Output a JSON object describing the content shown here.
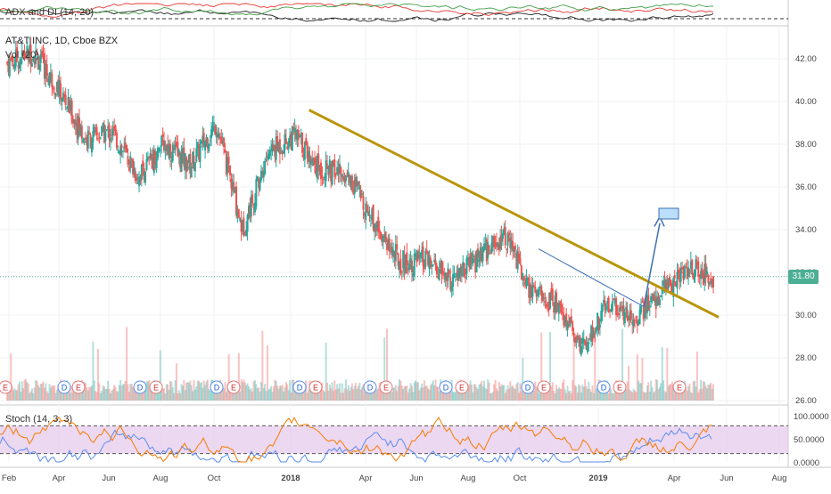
{
  "indicators": {
    "adx_label": "ADX and DI (14, 20)",
    "stoch_label": "Stoch (14, 3, 3)",
    "vol_label": "Vol (20)"
  },
  "symbol": {
    "header": "AT&T INC, 1D, Cboe BZX",
    "last_price_tag": "31.80"
  },
  "colors": {
    "up": "#26a69a",
    "down": "#ef5350",
    "trendline": "#b8960c",
    "secondary_trendline": "#3d6fb6",
    "stoch_band": "#e1bee7",
    "earnings_badge": "#e57373",
    "dividend_badge": "#5b8def",
    "last_price": "#4caf95"
  },
  "price_axis": {
    "ticks": [
      "42.00",
      "40.00",
      "38.00",
      "36.00",
      "34.00",
      "32.00",
      "30.00",
      "28.00",
      "26.00"
    ]
  },
  "stoch_axis": {
    "ticks": [
      "100.0000",
      "50.0000",
      "0.0000"
    ]
  },
  "time_axis": {
    "ticks": [
      "Feb",
      "Apr",
      "Jun",
      "Aug",
      "Oct",
      "2018",
      "Apr",
      "Jun",
      "Aug",
      "Oct",
      "2019",
      "Apr",
      "Jun",
      "Aug"
    ]
  },
  "event_markers": [
    "E",
    "D",
    "E",
    "D",
    "E",
    "D",
    "E",
    "D",
    "E",
    "D",
    "E",
    "D",
    "E",
    "D",
    "E",
    "D",
    "E",
    "E"
  ],
  "chart_data": {
    "type": "candlestick",
    "title": "AT&T INC, 1D, Cboe BZX",
    "ylim": [
      26,
      43.5
    ],
    "price_path": [
      {
        "month": "Feb 2017",
        "close": 41.8
      },
      {
        "month": "Mar 2017",
        "close": 42.3
      },
      {
        "month": "Apr 2017",
        "close": 40.5
      },
      {
        "month": "May 2017",
        "close": 38.2
      },
      {
        "month": "Jun 2017",
        "close": 38.6
      },
      {
        "month": "Jul 2017",
        "close": 36.5
      },
      {
        "month": "Aug 2017",
        "close": 38.0
      },
      {
        "month": "Sep 2017",
        "close": 37.0
      },
      {
        "month": "Oct 2017",
        "close": 39.0
      },
      {
        "month": "Nov 2017",
        "close": 34.0
      },
      {
        "month": "Dec 2017",
        "close": 37.6
      },
      {
        "month": "Jan 2018",
        "close": 38.4
      },
      {
        "month": "Feb 2018",
        "close": 36.8
      },
      {
        "month": "Mar 2018",
        "close": 36.6
      },
      {
        "month": "Apr 2018",
        "close": 34.5
      },
      {
        "month": "May 2018",
        "close": 32.5
      },
      {
        "month": "Jun 2018",
        "close": 32.5
      },
      {
        "month": "Jul 2018",
        "close": 31.6
      },
      {
        "month": "Aug 2018",
        "close": 32.6
      },
      {
        "month": "Sep 2018",
        "close": 33.8
      },
      {
        "month": "Oct 2018",
        "close": 31.2
      },
      {
        "month": "Nov 2018",
        "close": 30.5
      },
      {
        "month": "Dec 2018",
        "close": 28.5
      },
      {
        "month": "Jan 2019",
        "close": 30.6
      },
      {
        "month": "Feb 2019",
        "close": 29.9
      },
      {
        "month": "Mar 2019",
        "close": 31.0
      },
      {
        "month": "Apr 2019",
        "close": 32.2
      },
      {
        "month": "May 2019",
        "close": 31.8
      }
    ],
    "last_price": 31.8,
    "trendline": {
      "start": [
        "Jan 2018",
        39.6
      ],
      "end": [
        "May 2019",
        29.9
      ]
    },
    "target_box": {
      "price_low": 34.5,
      "price_high": 35.0
    },
    "stoch_levels": [
      20,
      80
    ]
  }
}
